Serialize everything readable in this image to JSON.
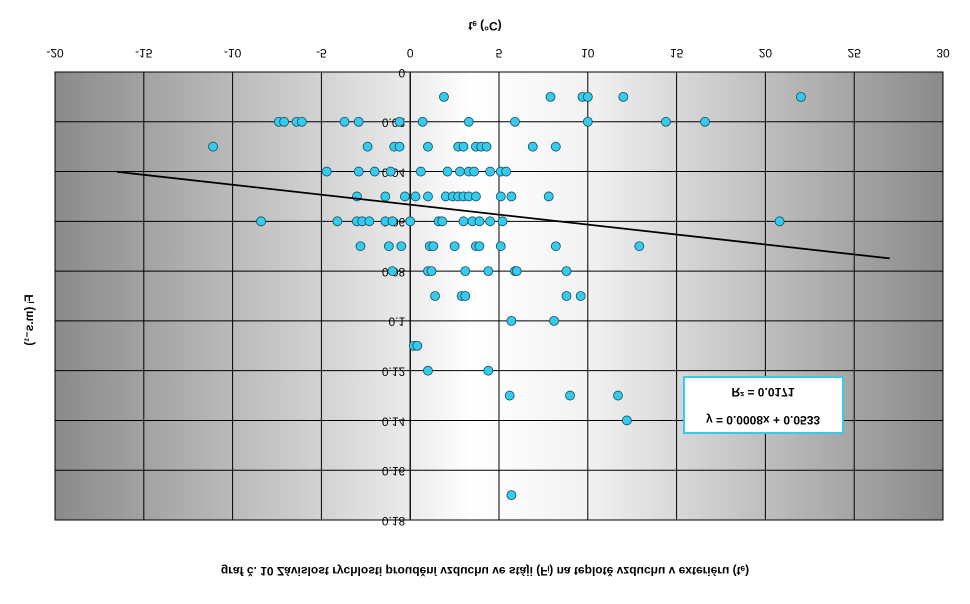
{
  "chart_data": {
    "type": "scatter",
    "title": "graf č. 10 Závislost rychlosti proudění vzduchu ve stáji (Fᵢ) na teplotě vzduchu v exteriéru (tₑ)",
    "x_label": "tₑ (°C)",
    "y_label": "Fᵢ (m.s⁻¹)",
    "xlim": [
      -20,
      30
    ],
    "ylim": [
      0,
      0.18
    ],
    "xticks": [
      -20,
      -15,
      -10,
      -5,
      0,
      5,
      10,
      15,
      20,
      25,
      30
    ],
    "yticks": [
      0,
      0.02,
      0.04,
      0.06,
      0.08,
      0.1,
      0.12,
      0.14,
      0.16,
      0.18
    ],
    "grid": true,
    "color": "#33ccee",
    "x": [
      1.9,
      7.9,
      9.7,
      10.0,
      12.0,
      22.0,
      -7.4,
      -7.1,
      -6.4,
      -6.1,
      -3.7,
      -2.9,
      -0.6,
      0.7,
      3.3,
      5.9,
      10.0,
      14.4,
      16.6,
      -11.1,
      -2.4,
      -0.9,
      -0.6,
      1.0,
      2.7,
      3.0,
      3.7,
      4.0,
      4.3,
      6.9,
      8.2,
      -4.7,
      -2.9,
      -2.0,
      -1.1,
      0.6,
      2.1,
      2.8,
      3.3,
      3.6,
      4.5,
      5.1,
      5.4,
      -3.0,
      -1.4,
      -0.3,
      0.3,
      1.0,
      2.0,
      2.4,
      2.7,
      3.0,
      3.3,
      3.7,
      5.1,
      5.7,
      7.8,
      -8.4,
      -4.1,
      -3.0,
      -2.7,
      -2.3,
      -1.4,
      -1.0,
      0.0,
      1.6,
      1.8,
      3.0,
      3.5,
      3.9,
      4.5,
      5.2,
      20.8,
      -2.8,
      -1.2,
      -0.5,
      1.1,
      1.3,
      2.5,
      3.7,
      3.9,
      5.1,
      8.2,
      12.9,
      -1.0,
      1.0,
      1.2,
      3.1,
      4.4,
      5.9,
      6.0,
      8.8,
      1.4,
      2.9,
      3.1,
      8.8,
      9.6,
      5.7,
      8.1,
      0.2,
      0.4,
      1.0,
      4.4,
      5.6,
      9.0,
      11.7,
      12.2,
      5.7
    ],
    "y": [
      0.01,
      0.01,
      0.01,
      0.01,
      0.01,
      0.01,
      0.02,
      0.02,
      0.02,
      0.02,
      0.02,
      0.02,
      0.02,
      0.02,
      0.02,
      0.02,
      0.02,
      0.02,
      0.02,
      0.03,
      0.03,
      0.03,
      0.03,
      0.03,
      0.03,
      0.03,
      0.03,
      0.03,
      0.03,
      0.03,
      0.03,
      0.04,
      0.04,
      0.04,
      0.04,
      0.04,
      0.04,
      0.04,
      0.04,
      0.04,
      0.04,
      0.04,
      0.04,
      0.05,
      0.05,
      0.05,
      0.05,
      0.05,
      0.05,
      0.05,
      0.05,
      0.05,
      0.05,
      0.05,
      0.05,
      0.05,
      0.05,
      0.06,
      0.06,
      0.06,
      0.06,
      0.06,
      0.06,
      0.06,
      0.06,
      0.06,
      0.06,
      0.06,
      0.06,
      0.06,
      0.06,
      0.06,
      0.06,
      0.07,
      0.07,
      0.07,
      0.07,
      0.07,
      0.07,
      0.07,
      0.07,
      0.07,
      0.07,
      0.07,
      0.08,
      0.08,
      0.08,
      0.08,
      0.08,
      0.08,
      0.08,
      0.08,
      0.09,
      0.09,
      0.09,
      0.09,
      0.09,
      0.1,
      0.1,
      0.11,
      0.11,
      0.12,
      0.12,
      0.13,
      0.13,
      0.13,
      0.14,
      0.17
    ],
    "trendline": {
      "slope": 0.0008,
      "intercept": 0.0533,
      "x": [
        -16.5,
        27
      ]
    },
    "annotations": [
      "y = 0.0008x + 0.0533",
      "R² = 0.0171"
    ]
  }
}
